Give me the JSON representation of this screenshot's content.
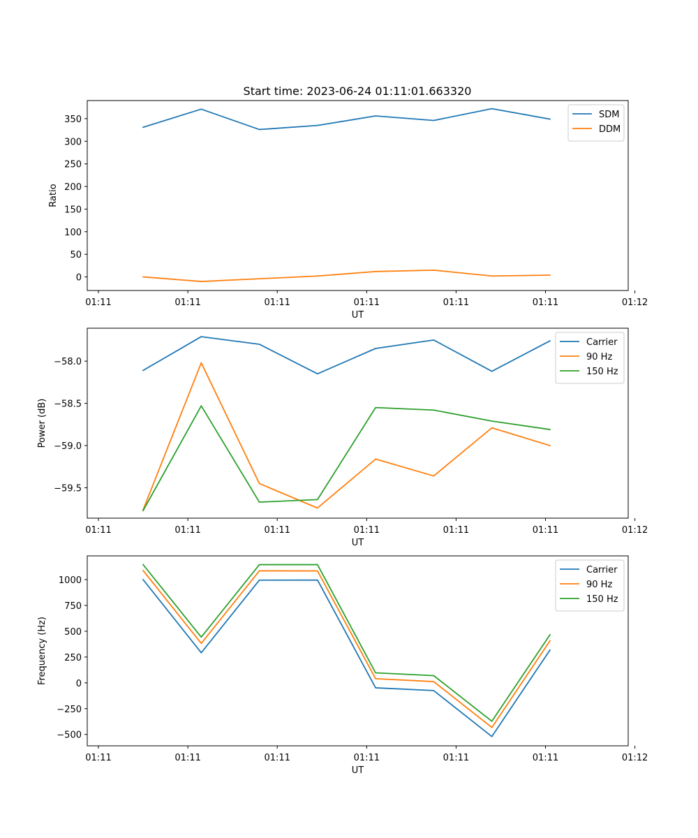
{
  "figure": {
    "title": "Start time: 2023-06-24 01:11:01.663320"
  },
  "chart_data": [
    {
      "type": "line",
      "ylabel": "Ratio",
      "xlabel": "UT",
      "xtick_labels": [
        "01:11",
        "01:11",
        "01:11",
        "01:11",
        "01:11",
        "01:11",
        "01:12"
      ],
      "xlim": [
        -0.125,
        5.925
      ],
      "ylim": [
        -30,
        390
      ],
      "yticks": [
        0,
        50,
        100,
        150,
        200,
        250,
        300,
        350
      ],
      "grid": false,
      "legend": "top-right",
      "x": [
        0.5,
        1.15,
        1.8,
        2.45,
        3.1,
        3.75,
        4.4,
        5.05
      ],
      "series": [
        {
          "name": "SDM",
          "color": "#1f77b4",
          "values": [
            331,
            371,
            326,
            335,
            356,
            346,
            372,
            349
          ]
        },
        {
          "name": "DDM",
          "color": "#ff7f0e",
          "values": [
            0,
            -10,
            -4,
            2,
            12,
            15,
            2,
            4
          ]
        }
      ]
    },
    {
      "type": "line",
      "ylabel": "Power (dB)",
      "xlabel": "UT",
      "xtick_labels": [
        "01:11",
        "01:11",
        "01:11",
        "01:11",
        "01:11",
        "01:11",
        "01:12"
      ],
      "xlim": [
        -0.125,
        5.925
      ],
      "ylim": [
        -59.86,
        -57.61
      ],
      "yticks": [
        -59.5,
        -59.0,
        -58.5,
        -58.0
      ],
      "ytick_labels": [
        "−59.5",
        "−59.0",
        "−58.5",
        "−58.0"
      ],
      "grid": false,
      "legend": "top-right",
      "x": [
        0.5,
        1.15,
        1.8,
        2.45,
        3.1,
        3.75,
        4.4,
        5.05
      ],
      "series": [
        {
          "name": "Carrier",
          "color": "#1f77b4",
          "values": [
            -58.11,
            -57.71,
            -57.8,
            -58.15,
            -57.85,
            -57.75,
            -58.12,
            -57.76
          ]
        },
        {
          "name": "90 Hz",
          "color": "#ff7f0e",
          "values": [
            -59.76,
            -58.02,
            -59.45,
            -59.74,
            -59.16,
            -59.36,
            -58.79,
            -59.0
          ]
        },
        {
          "name": "150 Hz",
          "color": "#2ca02c",
          "values": [
            -59.77,
            -58.53,
            -59.67,
            -59.64,
            -58.55,
            -58.58,
            -58.71,
            -58.81
          ]
        }
      ]
    },
    {
      "type": "line",
      "ylabel": "Frequency (Hz)",
      "xlabel": "UT",
      "xtick_labels": [
        "01:11",
        "01:11",
        "01:11",
        "01:11",
        "01:11",
        "01:11",
        "01:12"
      ],
      "xlim": [
        -0.125,
        5.925
      ],
      "ylim": [
        -610,
        1230
      ],
      "yticks": [
        -500,
        -250,
        0,
        250,
        500,
        750,
        1000
      ],
      "ytick_labels": [
        "−500",
        "−250",
        "0",
        "250",
        "500",
        "750",
        "1000"
      ],
      "grid": false,
      "legend": "top-right",
      "x": [
        0.5,
        1.15,
        1.8,
        2.45,
        3.1,
        3.75,
        4.4,
        5.05
      ],
      "series": [
        {
          "name": "Carrier",
          "color": "#1f77b4",
          "values": [
            1000,
            292,
            995,
            996,
            -48,
            -75,
            -520,
            318
          ]
        },
        {
          "name": "90 Hz",
          "color": "#ff7f0e",
          "values": [
            1088,
            382,
            1085,
            1084,
            40,
            12,
            -432,
            407
          ]
        },
        {
          "name": "150 Hz",
          "color": "#2ca02c",
          "values": [
            1145,
            443,
            1145,
            1145,
            97,
            70,
            -372,
            466
          ]
        }
      ]
    }
  ]
}
